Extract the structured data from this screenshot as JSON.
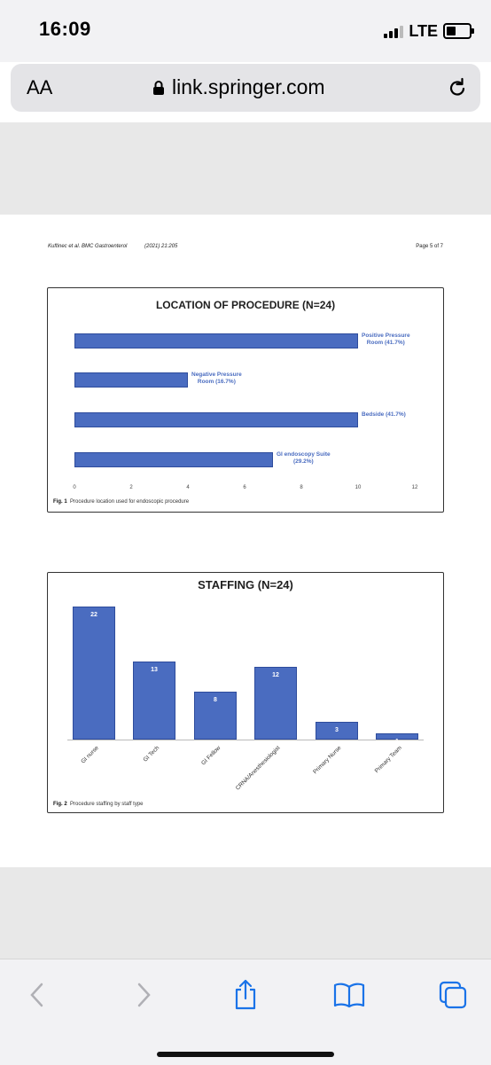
{
  "status_bar": {
    "time": "16:09",
    "network": "LTE"
  },
  "browser": {
    "text_size_label": "AA",
    "url": "link.springer.com"
  },
  "paper": {
    "running_header": "Kuftinec et al. BMC Gastroenterol",
    "year_volume": "(2021) 21:205",
    "page": "Page 5 of 7"
  },
  "figures": {
    "fig1": {
      "caption_label": "Fig. 1",
      "caption_text": "Procedure location used for endoscopic procedure"
    },
    "fig2": {
      "caption_label": "Fig. 2",
      "caption_text": "Procedure staffing by staff type"
    }
  },
  "chart_data": [
    {
      "type": "bar",
      "orientation": "horizontal",
      "title": "LOCATION OF PROCEDURE (N=24)",
      "categories": [
        "Positive Pressure Room (41.7%)",
        "Negative Pressure Room (16.7%)",
        "Bedside (41.7%)",
        "GI endoscopy Suite (29.2%)"
      ],
      "label_lines": [
        [
          "Positive Pressure",
          "Room (41.7%)"
        ],
        [
          "Negative Pressure",
          "Room (16.7%)"
        ],
        [
          "Bedside (41.7%)"
        ],
        [
          "GI endoscopy Suite",
          "(29.2%)"
        ]
      ],
      "values": [
        10,
        4,
        10,
        7
      ],
      "xlim": [
        0,
        12
      ],
      "xticks": [
        "0",
        "2",
        "4",
        "6",
        "8",
        "10",
        "12"
      ],
      "grid": false,
      "colors": {
        "bar": "#4a6cc0",
        "label": "#4a6cc0"
      }
    },
    {
      "type": "bar",
      "orientation": "vertical",
      "title": "STAFFING (N=24)",
      "categories": [
        "GI nurse",
        "GI Tech",
        "GI Fellow",
        "CRNA/Anesthesiologist",
        "Primary Nurse",
        "Primary Team"
      ],
      "values": [
        22,
        13,
        8,
        12,
        3,
        1
      ],
      "value_labels": [
        "22",
        "13",
        "8",
        "12",
        "3",
        "1"
      ],
      "ylim": [
        0,
        22
      ],
      "grid": false,
      "colors": {
        "bar": "#4a6cc0"
      }
    }
  ],
  "toolbar": {
    "back_icon": "chevron-left-icon",
    "forward_icon": "chevron-right-icon",
    "share_icon": "share-icon",
    "bookmarks_icon": "book-icon",
    "tabs_icon": "tabs-icon",
    "accent": "#1a73e8"
  }
}
